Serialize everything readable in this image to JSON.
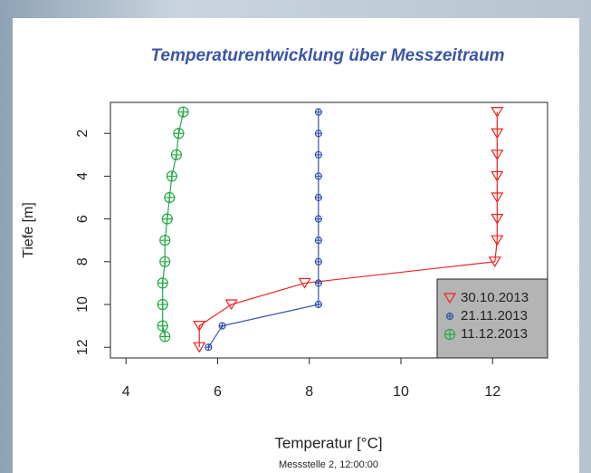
{
  "chart_data": {
    "type": "line",
    "title": "Temperaturentwicklung über Messzeitraum",
    "subtitle": "Messstelle 2, 12:00:00",
    "x_label": "Temperatur [°C]",
    "y_label": "Tiefe [m]",
    "xlim": [
      3.66,
      13.2
    ],
    "xticks": [
      4,
      6,
      8,
      10,
      12
    ],
    "ylim": [
      12.5,
      0.55
    ],
    "yticks": [
      2,
      4,
      6,
      8,
      10,
      12
    ],
    "legend": "bottom-right",
    "series": [
      {
        "name": "30.10.2013",
        "color": "#ee2222",
        "marker": "triangle-down",
        "x": [
          12.1,
          12.1,
          12.1,
          12.1,
          12.1,
          12.1,
          12.1,
          12.05,
          7.9,
          6.3,
          5.6,
          5.6
        ],
        "values": [
          1,
          2,
          3,
          4,
          5,
          6,
          7,
          8,
          9,
          10,
          11,
          12
        ]
      },
      {
        "name": "21.11.2013",
        "color": "#3355aa",
        "marker": "circle-plus-small",
        "x": [
          8.2,
          8.2,
          8.2,
          8.2,
          8.2,
          8.2,
          8.2,
          8.2,
          8.2,
          8.2,
          6.1,
          5.8
        ],
        "values": [
          1,
          2,
          3,
          4,
          5,
          6,
          7,
          8,
          9,
          10,
          11,
          12
        ]
      },
      {
        "name": "11.12.2013",
        "color": "#22aa44",
        "marker": "circle-plus",
        "x": [
          5.25,
          5.15,
          5.1,
          5.0,
          4.95,
          4.9,
          4.85,
          4.85,
          4.8,
          4.8,
          4.8,
          4.85
        ],
        "values": [
          1,
          2,
          3,
          4,
          5,
          6,
          7,
          8,
          9,
          10,
          11,
          11.5
        ]
      }
    ]
  }
}
